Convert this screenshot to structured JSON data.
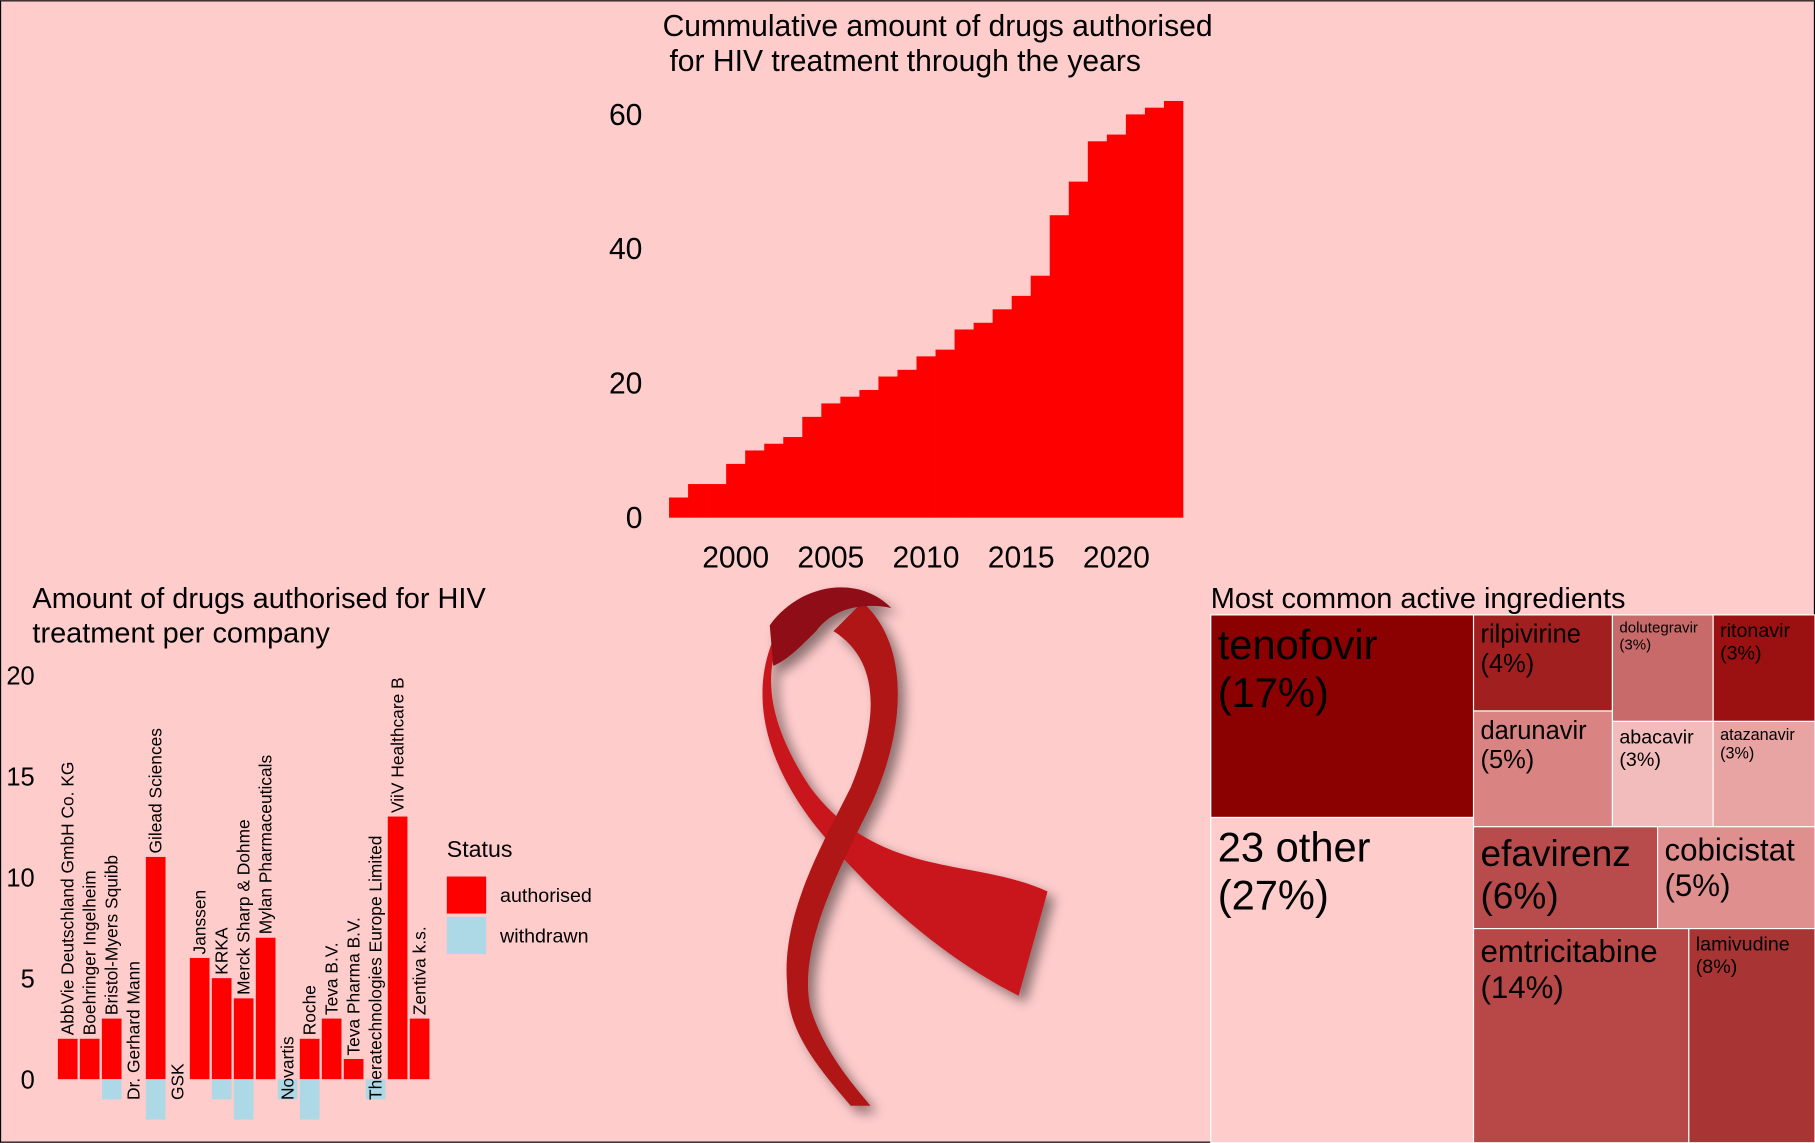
{
  "chart_data": [
    {
      "type": "bar",
      "title": [
        "Cummulative amount of drugs authorised",
        "for HIV treatment through the years"
      ],
      "x": [
        1997,
        1998,
        1999,
        2000,
        2001,
        2002,
        2003,
        2004,
        2005,
        2006,
        2007,
        2008,
        2009,
        2010,
        2011,
        2012,
        2013,
        2014,
        2015,
        2016,
        2017,
        2018,
        2019,
        2020,
        2021,
        2022,
        2023
      ],
      "values": [
        3,
        5,
        5,
        8,
        10,
        11,
        12,
        15,
        17,
        18,
        19,
        21,
        22,
        24,
        25,
        28,
        29,
        31,
        33,
        36,
        45,
        50,
        56,
        57,
        60,
        61,
        62
      ],
      "color": "#ff0000",
      "xlim": [
        1996.5,
        2023.5
      ],
      "xticks": [
        2000,
        2005,
        2010,
        2015,
        2020
      ],
      "ylim": [
        0,
        62
      ],
      "yticks": [
        0,
        20,
        40,
        60
      ],
      "grid": false
    },
    {
      "type": "company_bar",
      "title": [
        "Amount of drugs authorised for HIV",
        "treatment per company"
      ],
      "categories": [
        "AbbVie Deutschland GmbH  Co. KG",
        "Boehringer Ingelheim",
        "Bristol-Myers Squibb",
        "Dr. Gerhard Mann",
        "Gilead Sciences",
        "GSK",
        "Janssen",
        "KRKA",
        "Merck Sharp & Dohme",
        "Mylan Pharmaceuticals",
        "Novartis",
        "Roche",
        "Teva B.V.",
        "Teva Pharma B.V.",
        "Theratechnologies Europe Limited",
        "ViiV Healthcare B",
        "Zentiva k.s."
      ],
      "series": [
        {
          "name": "authorised",
          "color": "#ff0000",
          "values": [
            2,
            2,
            3,
            0,
            11,
            0,
            6,
            5,
            4,
            7,
            0,
            2,
            3,
            1,
            0,
            13,
            3
          ]
        },
        {
          "name": "withdrawn",
          "color": "#add8e6",
          "values": [
            0,
            0,
            -1,
            0,
            -2,
            0,
            0,
            -1,
            -2,
            0,
            -1,
            -2,
            0,
            0,
            -1,
            0,
            0
          ]
        }
      ],
      "legend_title": "Status",
      "ylim": [
        -2,
        20
      ],
      "yticks": [
        0,
        5,
        10,
        15,
        20
      ],
      "grid": false
    },
    {
      "type": "treemap",
      "title": "Most common active ingredients",
      "categories": [
        "tenofovir",
        "23 other",
        "rilpivirine",
        "darunavir",
        "dolutegravir",
        "ritonavir",
        "abacavir",
        "atazanavir",
        "efavirenz",
        "cobicistat",
        "emtricitabine",
        "lamivudine"
      ],
      "values": [
        17,
        27,
        4,
        5,
        3,
        3,
        3,
        3,
        6,
        5,
        14,
        8
      ],
      "value_labels": [
        "(17%)",
        "(27%)",
        "(4%)",
        "(5%)",
        "(3%)",
        "(3%)",
        "(3%)",
        "(3%)",
        "(6%)",
        "(5%)",
        "(14%)",
        "(8%)"
      ],
      "colors": [
        "#8b0000",
        "#ffcccc",
        "#a21f1f",
        "#d98383",
        "#c96a6a",
        "#9b1010",
        "#f2bcbc",
        "#e8a3a3",
        "#b84c4c",
        "#e08f8f",
        "#b84848",
        "#a83434"
      ]
    }
  ]
}
